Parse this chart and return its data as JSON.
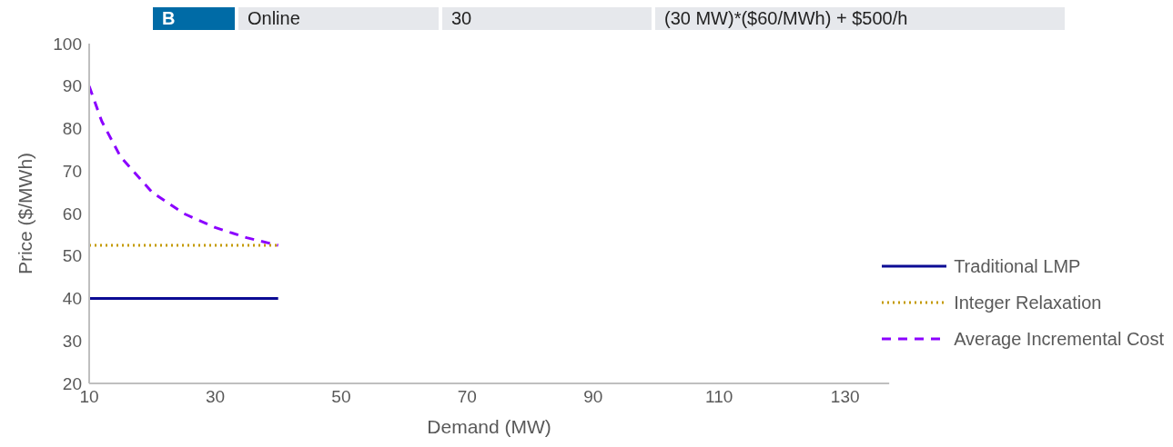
{
  "chart_data": {
    "type": "line",
    "xlabel": "Demand (MW)",
    "ylabel": "Price ($/MWh)",
    "annotations": [
      "B",
      "Online",
      "30",
      "(30 MW)*($60/MWh) + $500/h"
    ],
    "xlim": [
      10,
      137
    ],
    "xticks": [
      10,
      30,
      50,
      70,
      90,
      110,
      130
    ],
    "ylim": [
      20,
      100
    ],
    "yticks": [
      20,
      30,
      40,
      50,
      60,
      70,
      80,
      90,
      100
    ],
    "grid": false,
    "legend": "right",
    "marker": "none",
    "series": [
      {
        "name": "Traditional LMP",
        "color": "#0b0b94",
        "line_style": "solid",
        "x": [
          10,
          40
        ],
        "values": [
          40,
          40
        ]
      },
      {
        "name": "Integer Relaxation",
        "color": "#c49a00",
        "line_style": "dotted",
        "x": [
          10,
          40
        ],
        "values": [
          52.5,
          52.5
        ]
      },
      {
        "name": "Average Incremental Cost",
        "color": "#8b00ff",
        "line_style": "dashed",
        "x": [
          10,
          12,
          15,
          20,
          25,
          30,
          35,
          40
        ],
        "values": [
          90,
          81.7,
          73.3,
          65,
          60,
          56.7,
          54.3,
          52.5
        ]
      }
    ]
  }
}
